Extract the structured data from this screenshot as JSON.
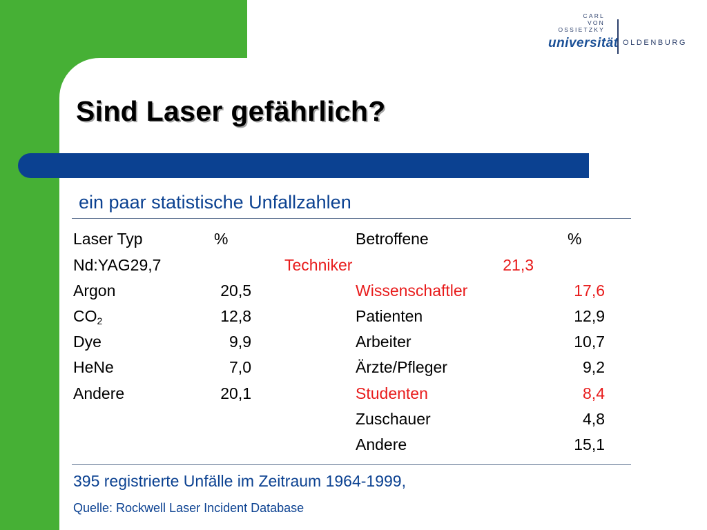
{
  "logo": {
    "line1": "CARL",
    "line2": "VON",
    "line3": "OSSIETZKY",
    "universitaet": "universität",
    "city": "OLDENBURG"
  },
  "title": "Sind Laser gefährlich?",
  "subtitle": "ein paar statistische Unfallzahlen",
  "table": {
    "header": {
      "laser_typ": "Laser Typ",
      "pct1": "%",
      "betroffene": "Betroffene",
      "pct2": "%"
    },
    "row1": {
      "laser": "Nd:YAG29,7",
      "betroffene": "Techniker",
      "pct2": "21,3"
    },
    "row2": {
      "laser": "Argon",
      "pct1": "20,5",
      "betroffene": "Wissenschaftler",
      "pct2": "17,6"
    },
    "row3": {
      "laser": "CO",
      "laser_sub": "2",
      "pct1": "12,8",
      "betroffene": "Patienten",
      "pct2": "12,9"
    },
    "row4": {
      "laser": "Dye",
      "pct1": "9,9",
      "betroffene": "Arbeiter",
      "pct2": "10,7"
    },
    "row5": {
      "laser": "HeNe",
      "pct1": "7,0",
      "betroffene": "Ärzte/Pfleger",
      "pct2": "9,2"
    },
    "row6": {
      "laser": "Andere",
      "pct1": "20,1",
      "betroffene": "Studenten",
      "pct2": "8,4"
    },
    "row7": {
      "betroffene": "Zuschauer",
      "pct2": "4,8"
    },
    "row8": {
      "betroffene": "Andere",
      "pct2": "15,1"
    }
  },
  "footer": {
    "line1": "395 registrierte Unfälle im Zeitraum 1964-1999,",
    "source": "Quelle: Rockwell Laser Incident Database"
  },
  "colors": {
    "green": "#46b035",
    "blue": "#0b4191",
    "highlight_red": "#e81b1b"
  }
}
